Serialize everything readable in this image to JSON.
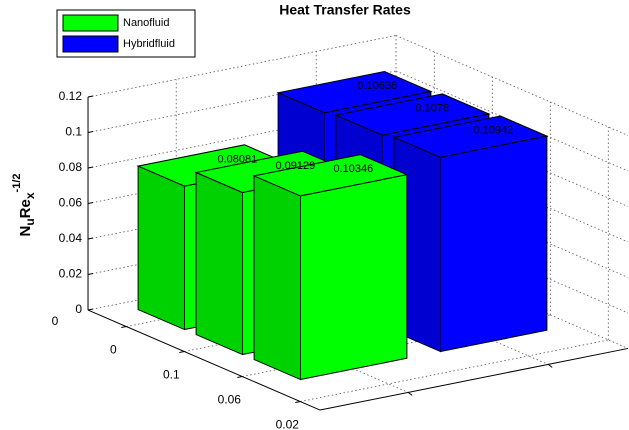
{
  "chart_data": {
    "type": "bar3",
    "title": "Heat Transfer Rates",
    "zlabel_parts": [
      "N",
      "u",
      "Re",
      "x",
      "-1/2"
    ],
    "xtick_labels": [
      "0",
      "0.1",
      "0.06",
      "0.02"
    ],
    "ytick_labels": [
      "0"
    ],
    "series": [
      {
        "name": "Nanofluid",
        "color": "#00ff00",
        "values": [
          0.08081,
          0.09129,
          0.10346
        ]
      },
      {
        "name": "Hybridfluid",
        "color": "#0000ff",
        "values": [
          0.10636,
          0.1078,
          0.10942
        ]
      }
    ],
    "zlim": [
      0,
      0.12
    ],
    "zticks": [
      0,
      0.02,
      0.04,
      0.06,
      0.08,
      0.1,
      0.12
    ],
    "grid": true,
    "legend": "upper left"
  }
}
